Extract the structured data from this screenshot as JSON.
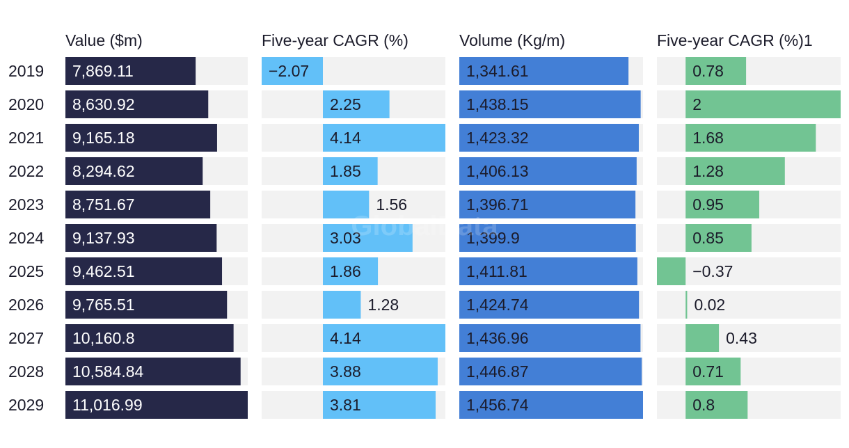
{
  "watermark": "GlobalData",
  "colors": {
    "track": "#f2f2f2",
    "value": "#262848",
    "cagr": "#62c0f8",
    "volume": "#437fd6",
    "volume_cagr": "#72c493",
    "text_dark": "#1b1b2a",
    "text_light": "#ffffff"
  },
  "chart_data": {
    "type": "bar",
    "orientation": "horizontal",
    "categories": [
      "2019",
      "2020",
      "2021",
      "2022",
      "2023",
      "2024",
      "2025",
      "2026",
      "2027",
      "2028",
      "2029"
    ],
    "columns": [
      {
        "key": "value",
        "header": "Value ($m)",
        "labels": [
          "7,869.11",
          "8,630.92",
          "9,165.18",
          "8,294.62",
          "8,751.67",
          "9,137.93",
          "9,462.51",
          "9,765.51",
          "10,160.8",
          "10,584.84",
          "11,016.99"
        ],
        "values": [
          7869.11,
          8630.92,
          9165.18,
          8294.62,
          8751.67,
          9137.93,
          9462.51,
          9765.51,
          10160.8,
          10584.84,
          11016.99
        ],
        "range": [
          0,
          11016.99
        ]
      },
      {
        "key": "cagr",
        "header": "Five-year CAGR (%)",
        "labels": [
          "−2.07",
          "2.25",
          "4.14",
          "1.85",
          "1.56",
          "3.03",
          "1.86",
          "1.28",
          "4.14",
          "3.88",
          "3.81"
        ],
        "values": [
          -2.07,
          2.25,
          4.14,
          1.85,
          1.56,
          3.03,
          1.86,
          1.28,
          4.14,
          3.88,
          3.81
        ],
        "range": [
          -2.07,
          4.14
        ]
      },
      {
        "key": "volume",
        "header": "Volume (Kg/m)",
        "labels": [
          "1,341.61",
          "1,438.15",
          "1,423.32",
          "1,406.13",
          "1,396.71",
          "1,399.9",
          "1,411.81",
          "1,424.74",
          "1,436.96",
          "1,446.87",
          "1,456.74"
        ],
        "values": [
          1341.61,
          1438.15,
          1423.32,
          1406.13,
          1396.71,
          1399.9,
          1411.81,
          1424.74,
          1436.96,
          1446.87,
          1456.74
        ],
        "range": [
          0,
          1456.74
        ]
      },
      {
        "key": "volume_cagr",
        "header": "Five-year CAGR (%)1",
        "labels": [
          "0.78",
          "2",
          "1.68",
          "1.28",
          "0.95",
          "0.85",
          "−0.37",
          "0.02",
          "0.43",
          "0.71",
          "0.8"
        ],
        "values": [
          0.78,
          2,
          1.68,
          1.28,
          0.95,
          0.85,
          -0.37,
          0.02,
          0.43,
          0.71,
          0.8
        ],
        "range": [
          -0.37,
          2
        ]
      }
    ]
  }
}
